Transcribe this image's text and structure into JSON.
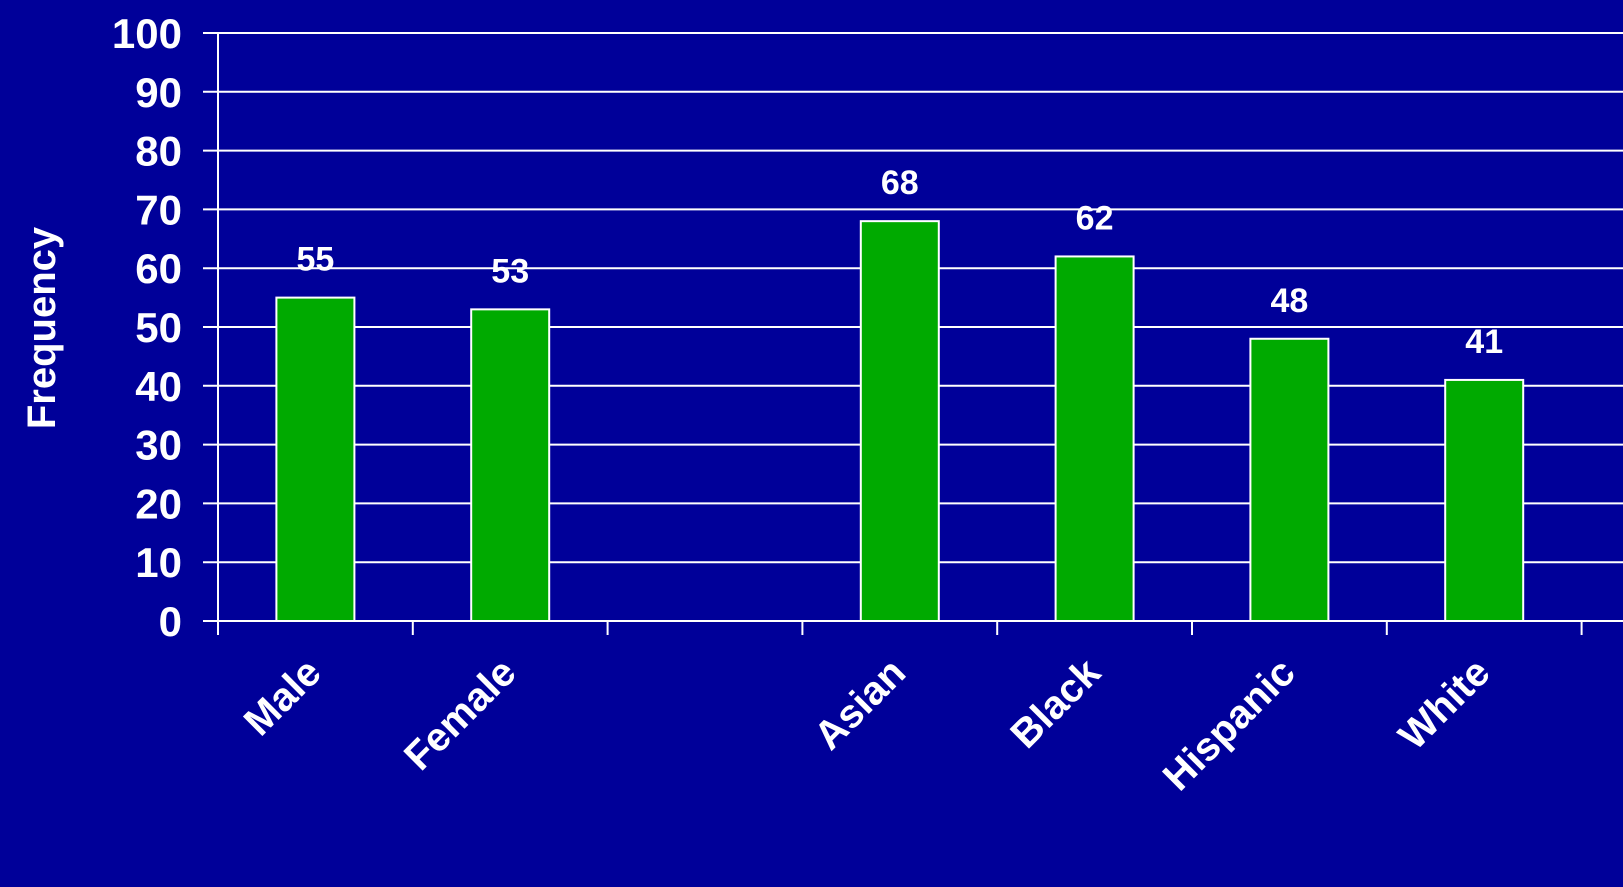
{
  "colors": {
    "background": "#000099",
    "bar_fill": "#00aa00",
    "bar_stroke": "#ffffff",
    "gridline": "#ffffff",
    "text": "#ffffff"
  },
  "chart_data": {
    "type": "bar",
    "title": "",
    "xlabel": "",
    "ylabel": "Frequency",
    "ylim": [
      0,
      100
    ],
    "yticks": [
      0,
      10,
      20,
      30,
      40,
      50,
      60,
      70,
      80,
      90,
      100
    ],
    "grid": true,
    "legend": "none",
    "slots": [
      "Male",
      "Female",
      "",
      "Asian",
      "Black",
      "Hispanic",
      "White"
    ],
    "categories": [
      "Male",
      "Female",
      "Asian",
      "Black",
      "Hispanic",
      "White"
    ],
    "values": [
      55,
      53,
      68,
      62,
      48,
      41
    ],
    "data_labels": [
      "55",
      "53",
      "68",
      "62",
      "48",
      "41"
    ]
  }
}
